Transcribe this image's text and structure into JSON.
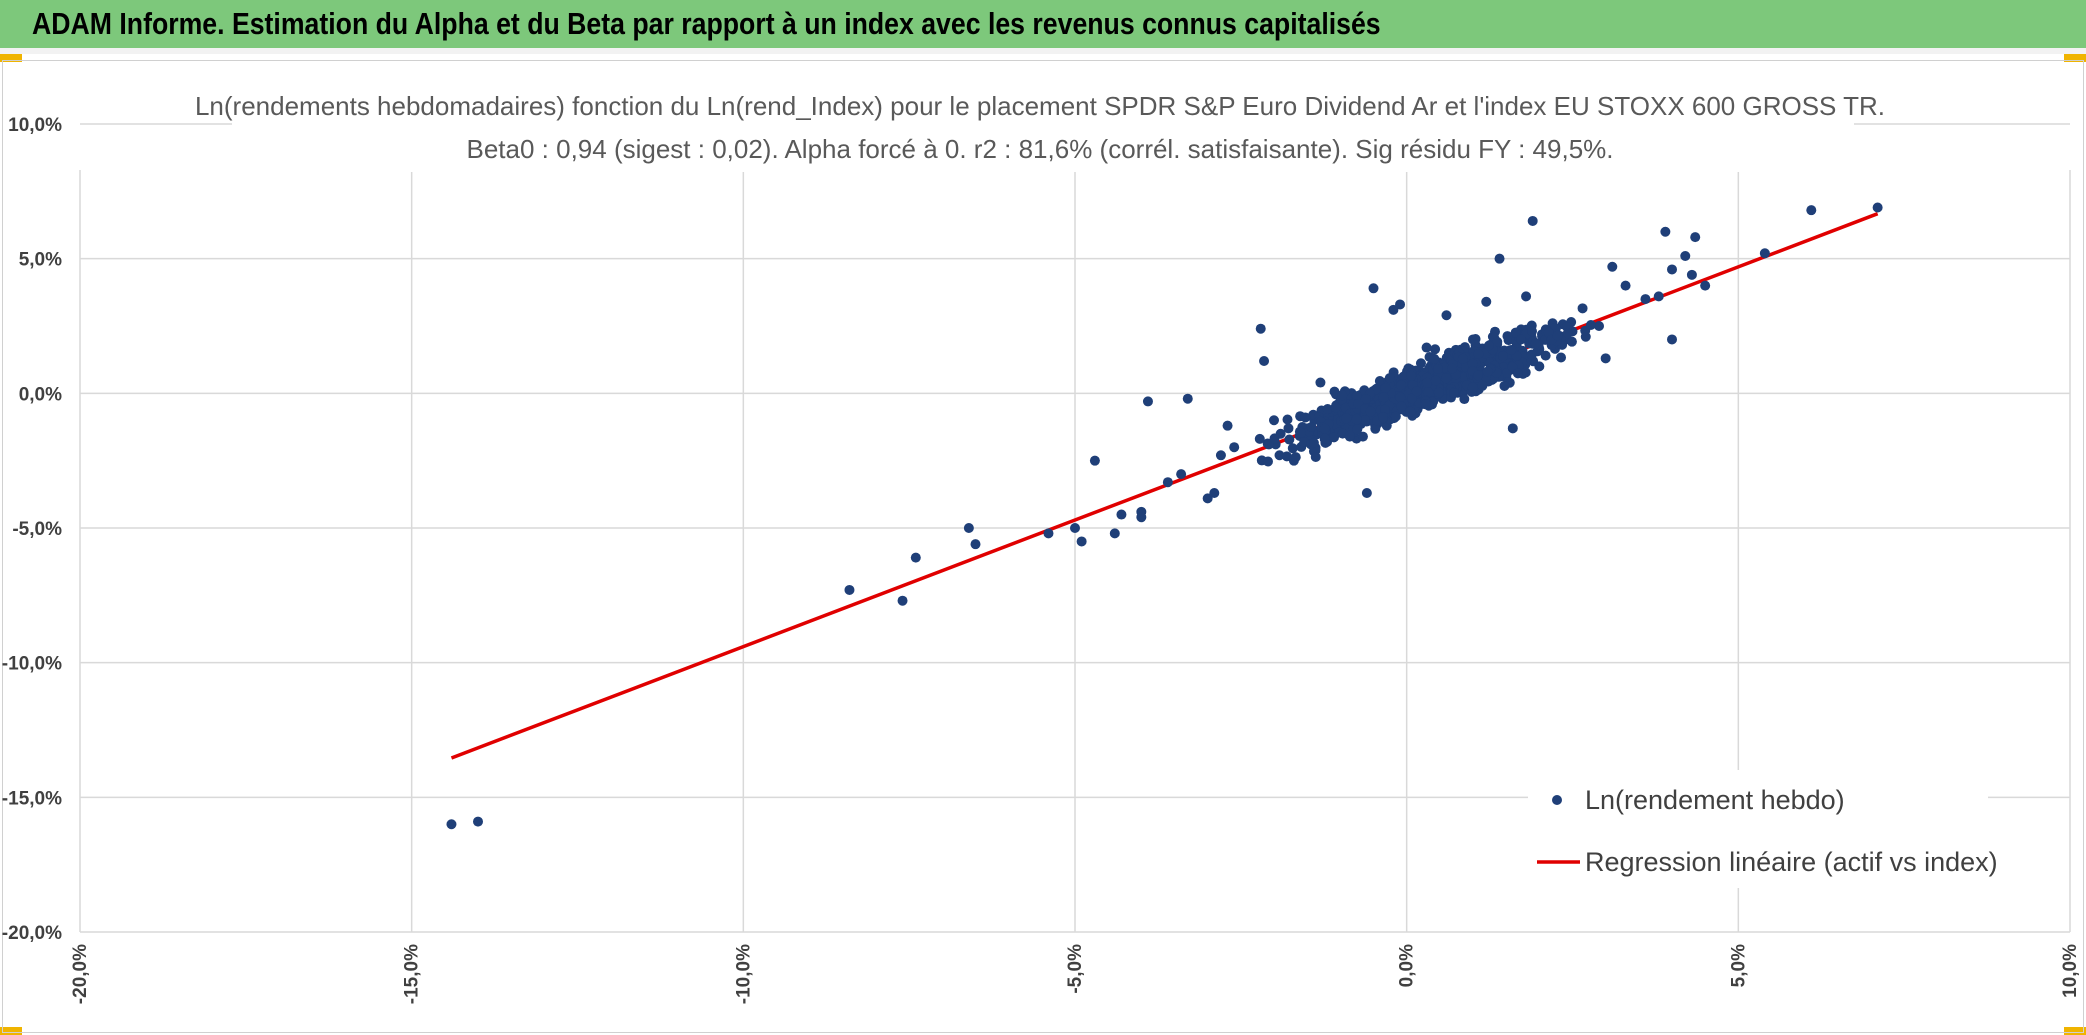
{
  "banner": {
    "title": "ADAM Informe. Estimation du Alpha et du Beta par rapport à un index avec les revenus connus capitalisés"
  },
  "colors": {
    "banner_bg": "#7dc87b",
    "accent_corner": "#f0b400",
    "points": "#1f3f78",
    "regression": "#e00000",
    "grid": "#d9d9d9"
  },
  "chart_data": {
    "type": "scatter",
    "title": "Ln(rendements hebdomadaires) fonction du Ln(rend_Index) pour le placement SPDR S&P Euro Dividend Ar et l'index EU STOXX 600 GROSS TR.",
    "subtitle": "Beta0 : 0,94 (sigest : 0,02). Alpha forcé à 0. r2 : 81,6% (corrél. satisfaisante). Sig résidu FY : 49,5%.",
    "xlabel": "",
    "ylabel": "",
    "xlim": [
      -20,
      10
    ],
    "ylim": [
      -20,
      10
    ],
    "x_ticks": [
      -20,
      -15,
      -10,
      -5,
      0,
      5,
      10
    ],
    "y_ticks": [
      10,
      5,
      0,
      -5,
      -10,
      -15,
      -20
    ],
    "x_tick_labels": [
      "-20,0%",
      "-15,0%",
      "-10,0%",
      "-5,0%",
      "0,0%",
      "5,0%",
      "10,0%"
    ],
    "y_tick_labels": [
      "10,0%",
      "5,0%",
      "0,0%",
      "-5,0%",
      "-10,0%",
      "-15,0%",
      "-20,0%"
    ],
    "grid": true,
    "legend_position": "bottom-right",
    "series": [
      {
        "name": "Ln(rendement hebdo)",
        "type": "scatter",
        "points": [
          [
            -14.4,
            -16.0
          ],
          [
            -14.0,
            -15.9
          ],
          [
            -8.4,
            -7.3
          ],
          [
            -7.6,
            -7.7
          ],
          [
            -7.4,
            -6.1
          ],
          [
            -6.6,
            -5.0
          ],
          [
            -6.5,
            -5.6
          ],
          [
            -5.4,
            -5.2
          ],
          [
            -5.0,
            -5.0
          ],
          [
            -4.9,
            -5.5
          ],
          [
            -4.4,
            -5.2
          ],
          [
            -4.3,
            -4.5
          ],
          [
            -4.0,
            -4.4
          ],
          [
            -4.0,
            -4.6
          ],
          [
            -4.7,
            -2.5
          ],
          [
            -3.9,
            -0.3
          ],
          [
            -3.3,
            -0.2
          ],
          [
            -3.6,
            -3.3
          ],
          [
            -3.4,
            -3.0
          ],
          [
            -3.0,
            -3.9
          ],
          [
            -2.9,
            -3.7
          ],
          [
            -2.8,
            -2.3
          ],
          [
            -2.6,
            -2.0
          ],
          [
            -2.7,
            -1.2
          ],
          [
            -2.2,
            2.4
          ],
          [
            -2.15,
            1.2
          ],
          [
            -2.0,
            -1.0
          ],
          [
            -1.9,
            -1.5
          ],
          [
            -1.7,
            -2.5
          ],
          [
            -1.5,
            -1.3
          ],
          [
            -1.3,
            0.4
          ],
          [
            -1.2,
            -1.8
          ],
          [
            -1.0,
            -0.5
          ],
          [
            -0.8,
            -1.6
          ],
          [
            -0.6,
            -3.7
          ],
          [
            -0.5,
            3.9
          ],
          [
            -0.3,
            -1.2
          ],
          [
            -0.2,
            3.1
          ],
          [
            -0.1,
            3.3
          ],
          [
            0.0,
            -0.5
          ],
          [
            0.2,
            0.6
          ],
          [
            0.3,
            1.7
          ],
          [
            0.4,
            -0.3
          ],
          [
            0.6,
            2.9
          ],
          [
            0.8,
            1.2
          ],
          [
            1.0,
            2.0
          ],
          [
            1.1,
            0.3
          ],
          [
            1.2,
            3.4
          ],
          [
            1.3,
            2.1
          ],
          [
            1.4,
            5.0
          ],
          [
            1.6,
            1.6
          ],
          [
            1.6,
            -1.3
          ],
          [
            1.8,
            3.6
          ],
          [
            1.9,
            6.4
          ],
          [
            2.0,
            1.0
          ],
          [
            2.2,
            2.6
          ],
          [
            2.4,
            2.0
          ],
          [
            2.5,
            2.3
          ],
          [
            2.7,
            2.1
          ],
          [
            2.9,
            2.5
          ],
          [
            3.0,
            1.3
          ],
          [
            3.1,
            4.7
          ],
          [
            3.3,
            4.0
          ],
          [
            3.6,
            3.5
          ],
          [
            3.8,
            3.6
          ],
          [
            3.9,
            6.0
          ],
          [
            4.0,
            2.0
          ],
          [
            4.0,
            4.6
          ],
          [
            4.2,
            5.1
          ],
          [
            4.3,
            4.4
          ],
          [
            4.35,
            5.8
          ],
          [
            4.5,
            4.0
          ],
          [
            5.4,
            5.2
          ],
          [
            6.1,
            6.8
          ],
          [
            7.1,
            6.9
          ]
        ]
      },
      {
        "name": "Regression linéaire (actif vs index)",
        "type": "line",
        "beta": 0.94,
        "x": [
          -14.4,
          7.1
        ],
        "y": [
          -13.54,
          6.67
        ]
      }
    ]
  }
}
